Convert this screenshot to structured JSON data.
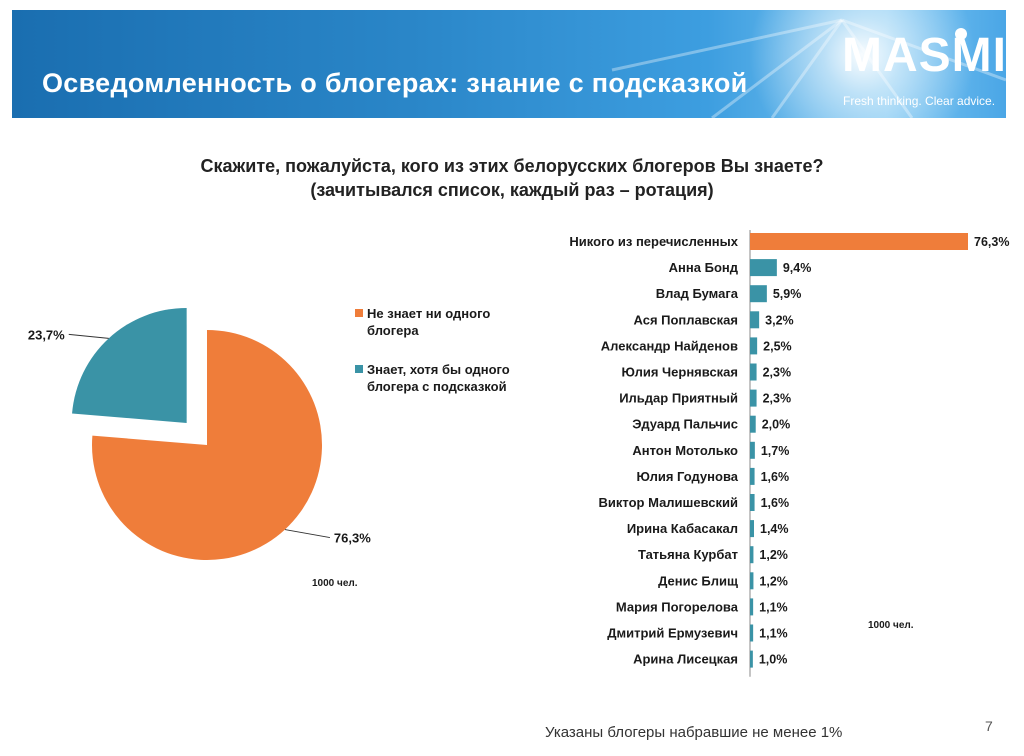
{
  "header": {
    "title": "Осведомленность о блогерах: знание с подсказкой",
    "logo": "MASMI",
    "tagline": "Fresh thinking. Clear advice."
  },
  "question": {
    "line1": "Скажите, пожалуйста, кого из этих белорусских блогеров Вы знаете?",
    "line2": "(зачитывался список, каждый раз – ротация)"
  },
  "colors": {
    "orange": "#ef7d3a",
    "teal": "#3a93a6",
    "banner": "#2a86c8"
  },
  "chart_data": [
    {
      "type": "pie",
      "slices": [
        {
          "name": "Не знает ни одного блогера",
          "value": 76.3,
          "label": "76,3%",
          "color": "#ef7d3a"
        },
        {
          "name": "Знает, хотя бы одного блогера с подсказкой",
          "value": 23.7,
          "label": "23,7%",
          "color": "#3a93a6",
          "exploded": true
        }
      ],
      "legend": [
        {
          "line1": "Не знает ни одного",
          "line2": "блогера",
          "color": "#ef7d3a"
        },
        {
          "line1": "Знает, хотя бы одного",
          "line2": "блогера с подсказкой",
          "color": "#3a93a6"
        }
      ],
      "legend_position": "right",
      "base_note": "1000 чел."
    },
    {
      "type": "bar",
      "orientation": "horizontal",
      "categories": [
        "Никого из перечисленных",
        "Анна Бонд",
        "Влад Бумага",
        "Ася Поплавская",
        "Александр Найденов",
        "Юлия Чернявская",
        "Ильдар Приятный",
        "Эдуард Пальчис",
        "Антон Мотолько",
        "Юлия Годунова",
        "Виктор Малишевский",
        "Ирина Кабасакал",
        "Татьяна Курбат",
        "Денис Блищ",
        "Мария Погорелова",
        "Дмитрий Ермузевич",
        "Арина Лисецкая"
      ],
      "values": [
        76.3,
        9.4,
        5.9,
        3.2,
        2.5,
        2.3,
        2.3,
        2.0,
        1.7,
        1.6,
        1.6,
        1.4,
        1.2,
        1.2,
        1.1,
        1.1,
        1.0
      ],
      "value_labels": [
        "76,3%",
        "9,4%",
        "5,9%",
        "3,2%",
        "2,5%",
        "2,3%",
        "2,3%",
        "2,0%",
        "1,7%",
        "1,6%",
        "1,6%",
        "1,4%",
        "1,2%",
        "1,2%",
        "1,1%",
        "1,1%",
        "1,0%"
      ],
      "bar_colors": [
        "#ef7d3a",
        "#3a93a6",
        "#3a93a6",
        "#3a93a6",
        "#3a93a6",
        "#3a93a6",
        "#3a93a6",
        "#3a93a6",
        "#3a93a6",
        "#3a93a6",
        "#3a93a6",
        "#3a93a6",
        "#3a93a6",
        "#3a93a6",
        "#3a93a6",
        "#3a93a6",
        "#3a93a6"
      ],
      "xlim": [
        0,
        76.3
      ],
      "base_note": "1000 чел."
    }
  ],
  "footer": {
    "note": "Указаны блогеры набравшие не менее 1%",
    "page_number": "7"
  }
}
